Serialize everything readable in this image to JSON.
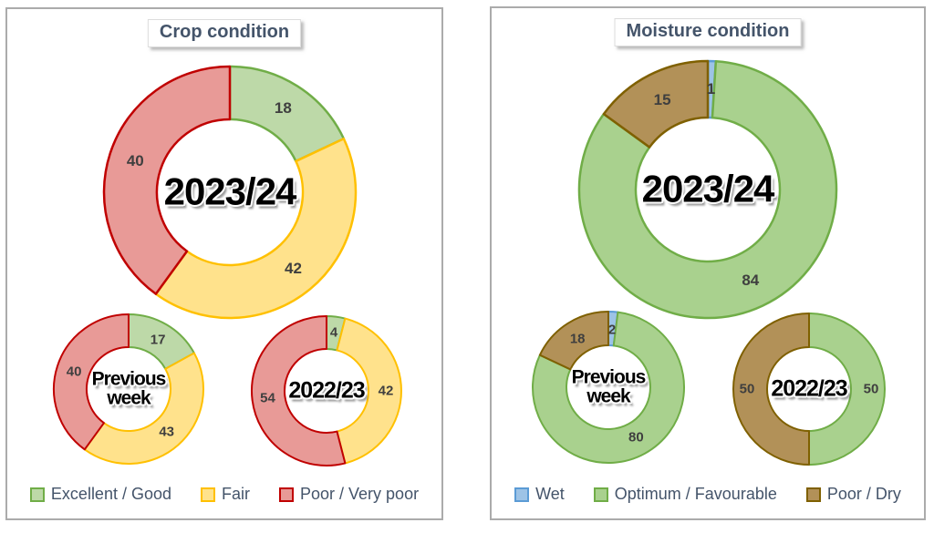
{
  "chart_data": [
    {
      "type": "pie",
      "donut": true,
      "panel": "Crop condition",
      "center_label": "2023/24",
      "categories": [
        "Excellent / Good",
        "Fair",
        "Poor / Very poor"
      ],
      "values": [
        18,
        42,
        40
      ],
      "start_angle_deg": 0,
      "direction": "clockwise",
      "legend_position": "bottom"
    },
    {
      "type": "pie",
      "donut": true,
      "panel": "Crop condition",
      "center_label": "Previous\nweek",
      "categories": [
        "Excellent / Good",
        "Fair",
        "Poor / Very poor"
      ],
      "values": [
        17,
        43,
        40
      ],
      "start_angle_deg": 0,
      "direction": "clockwise"
    },
    {
      "type": "pie",
      "donut": true,
      "panel": "Crop condition",
      "center_label": "2022/23",
      "categories": [
        "Excellent / Good",
        "Fair",
        "Poor / Very poor"
      ],
      "values": [
        4,
        42,
        54
      ],
      "start_angle_deg": 0,
      "direction": "clockwise"
    },
    {
      "type": "pie",
      "donut": true,
      "panel": "Moisture condition",
      "center_label": "2023/24",
      "categories": [
        "Wet",
        "Optimum / Favourable",
        "Poor / Dry"
      ],
      "values": [
        1,
        84,
        15
      ],
      "start_angle_deg": 0,
      "direction": "clockwise",
      "legend_position": "bottom"
    },
    {
      "type": "pie",
      "donut": true,
      "panel": "Moisture condition",
      "center_label": "Previous\nweek",
      "categories": [
        "Wet",
        "Optimum / Favourable",
        "Poor / Dry"
      ],
      "values": [
        2,
        80,
        18
      ],
      "start_angle_deg": 0,
      "direction": "clockwise"
    },
    {
      "type": "pie",
      "donut": true,
      "panel": "Moisture condition",
      "center_label": "2022/23",
      "categories": [
        "Wet",
        "Optimum / Favourable",
        "Poor / Dry"
      ],
      "values": [
        0,
        50,
        50
      ],
      "start_angle_deg": 0,
      "direction": "clockwise"
    }
  ],
  "panels": [
    {
      "title": "Crop condition",
      "series": [
        {
          "label": "Excellent / Good",
          "fill": "#BDD9A8",
          "border": "#70AD47"
        },
        {
          "label": "Fair",
          "fill": "#FFE28C",
          "border": "#FFC000"
        },
        {
          "label": "Poor / Very poor",
          "fill": "#E89A97",
          "border": "#C00000"
        }
      ]
    },
    {
      "title": "Moisture condition",
      "series": [
        {
          "label": "Wet",
          "fill": "#9DC3E6",
          "border": "#5B9BD5"
        },
        {
          "label": "Optimum / Favourable",
          "fill": "#A9D18E",
          "border": "#70AD47"
        },
        {
          "label": "Poor / Dry",
          "fill": "#B29158",
          "border": "#7F6000"
        }
      ]
    }
  ],
  "colors": {
    "panel_border": "#ABABAB",
    "title_text": "#44546A",
    "legend_text": "#44546A",
    "data_label_text": "#3F3F3F",
    "center_label_text": "#000000"
  }
}
